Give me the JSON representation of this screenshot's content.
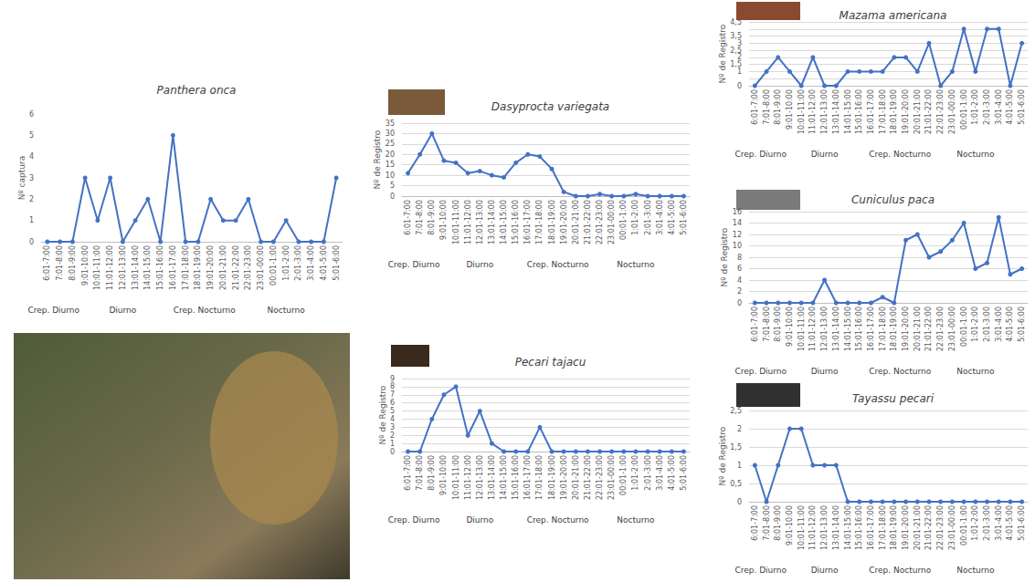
{
  "chart_data": [
    {
      "type": "line",
      "title": "Panthera onca",
      "y_label": "Nº captura",
      "annotations": [
        "Crep. Diurno",
        "Diurno",
        "Crep. Nocturno",
        "Nocturno"
      ],
      "categories": [
        "6:01-7:00",
        "7:01-8:00",
        "8:01-9:00",
        "9:01-10:00",
        "10:01-11:00",
        "11:01-12:00",
        "12:01-13:00",
        "13:01-14:00",
        "14:01-15:00",
        "15:01-16:00",
        "16:01-17:00",
        "17:01-18:00",
        "18:01-19:00",
        "19:01-20:00",
        "20:01-21:00",
        "21:01-22:00",
        "22:01-23:00",
        "23:01-00:00",
        "00:01-1:00",
        "1:01-2:00",
        "2:01-3:00",
        "3:01-4:00",
        "4:01-5:00",
        "5:01-6:00"
      ],
      "values": [
        0,
        0,
        0,
        3,
        1,
        3,
        0,
        1,
        2,
        0,
        5,
        0,
        0,
        2,
        1,
        1,
        2,
        0,
        0,
        1,
        0,
        0,
        0,
        3
      ],
      "color": "#4472c4",
      "marker": "circle",
      "ylim": [
        0,
        6
      ],
      "yticks": [
        0,
        1,
        2,
        3,
        4,
        5,
        6
      ],
      "grid": false
    },
    {
      "type": "line",
      "title": "Dasyprocta variegata",
      "y_label": "Nº de Registro",
      "annotations": [
        "Crep. Diurno",
        "Diurno",
        "Crep. Nocturno",
        "Nocturno"
      ],
      "categories": [
        "6:01-7:00",
        "7:01-8:00",
        "8:01-9:00",
        "9:01-10:00",
        "10:01-11:00",
        "11:01-12:00",
        "12:01-13:00",
        "13:01-14:00",
        "14:01-15:00",
        "15:01-16:00",
        "16:01-17:00",
        "17:01-18:00",
        "18:01-19:00",
        "19:01-20:00",
        "20:01-21:00",
        "21:01-22:00",
        "22:01-23:00",
        "23:01-00:00",
        "00:01-1:00",
        "1:01-2:00",
        "2:01-3:00",
        "3:01-4:00",
        "4:01-5:00",
        "5:01-6:00"
      ],
      "values": [
        11,
        20,
        30,
        17,
        16,
        11,
        12,
        10,
        9,
        16,
        20,
        19,
        13,
        2,
        0,
        0,
        1,
        0,
        0,
        1,
        0,
        0,
        0,
        0
      ],
      "color": "#4472c4",
      "marker": "circle",
      "ylim": [
        0,
        35
      ],
      "yticks": [
        0,
        5,
        10,
        15,
        20,
        25,
        30,
        35
      ],
      "grid": true
    },
    {
      "type": "line",
      "title": "Pecari tajacu",
      "y_label": "Nº de Registro",
      "annotations": [
        "Crep. Diurno",
        "Diurno",
        "Crep. Nocturno",
        "Nocturno"
      ],
      "categories": [
        "6:01-7:00",
        "7:01-8:00",
        "8:01-9:00",
        "9:01-10:00",
        "10:01-11:00",
        "11:01-12:00",
        "12:01-13:00",
        "13:01-14:00",
        "14:01-15:00",
        "15:01-16:00",
        "16:01-17:00",
        "17:01-18:00",
        "18:01-19:00",
        "19:01-20:00",
        "20:01-21:00",
        "21:01-22:00",
        "22:01-23:00",
        "23:01-00:00",
        "00:01-1:00",
        "1:01-2:00",
        "2:01-3:00",
        "3:01-4:00",
        "4:01-5:00",
        "5:01-6:00"
      ],
      "values": [
        0,
        0,
        4,
        7,
        8,
        2,
        5,
        1,
        0,
        0,
        0,
        3,
        0,
        0,
        0,
        0,
        0,
        0,
        0,
        0,
        0,
        0,
        0,
        0
      ],
      "color": "#4472c4",
      "marker": "circle",
      "ylim": [
        0,
        9
      ],
      "yticks": [
        0,
        1,
        2,
        3,
        4,
        5,
        6,
        7,
        8,
        9
      ],
      "grid": true
    },
    {
      "type": "line",
      "title": "Mazama americana",
      "y_label": "Nº de Registro",
      "annotations": [
        "Crep. Diurno",
        "Diurno",
        "Crep. Nocturno",
        "Nocturno"
      ],
      "categories": [
        "6:01-7:00",
        "7:01-8:00",
        "8:01-9:00",
        "9:01-10:00",
        "10:01-11:00",
        "11:01-12:00",
        "12:01-13:00",
        "13:01-14:00",
        "14:01-15:00",
        "15:01-16:00",
        "16:01-17:00",
        "17:01-18:00",
        "18:01-19:00",
        "19:01-20:00",
        "20:01-21:00",
        "21:01-22:00",
        "22:01-23:00",
        "23:01-00:00",
        "00:01-1:00",
        "1:01-2:00",
        "2:01-3:00",
        "3:01-4:00",
        "4:01-5:00",
        "5:01-6:00"
      ],
      "values": [
        0,
        1,
        2,
        1,
        0,
        2,
        0,
        0,
        1,
        1,
        1,
        1,
        2,
        2,
        1,
        3,
        0,
        1,
        4,
        1,
        4,
        4,
        0,
        3
      ],
      "color": "#4472c4",
      "marker": "circle",
      "ylim": [
        0,
        4.5
      ],
      "yticks": [
        0,
        {
          "value": 0.5,
          "label": "0,5"
        },
        1,
        {
          "value": 1.5,
          "label": "1,5"
        },
        2,
        {
          "value": 2.5,
          "label": "2,5"
        },
        3,
        {
          "value": 3.5,
          "label": "3,5"
        },
        4,
        {
          "value": 4.5,
          "label": "4,5"
        }
      ],
      "grid": true
    },
    {
      "type": "line",
      "title": "Cuniculus paca",
      "y_label": "Nº de Registro",
      "annotations": [
        "Crep. Diurno",
        "Diurno",
        "Crep. Nocturno",
        "Nocturno"
      ],
      "categories": [
        "6:01-7:00",
        "7:01-8:00",
        "8:01-9:00",
        "9:01-10:00",
        "10:01-11:00",
        "11:01-12:00",
        "12:01-13:00",
        "13:01-14:00",
        "14:01-15:00",
        "15:01-16:00",
        "16:01-17:00",
        "17:01-18:00",
        "18:01-19:00",
        "19:01-20:00",
        "20:01-21:00",
        "21:01-22:00",
        "22:01-23:00",
        "23:01-00:00",
        "00:01-1:00",
        "1:01-2:00",
        "2:01-3:00",
        "3:01-4:00",
        "4:01-5:00",
        "5:01-6:00"
      ],
      "values": [
        0,
        0,
        0,
        0,
        0,
        0,
        4,
        0,
        0,
        0,
        0,
        1,
        0,
        11,
        12,
        8,
        9,
        11,
        14,
        6,
        7,
        15,
        5,
        6
      ],
      "color": "#4472c4",
      "marker": "circle",
      "ylim": [
        0,
        16
      ],
      "yticks": [
        0,
        2,
        4,
        6,
        8,
        10,
        12,
        14,
        16
      ],
      "grid": true
    },
    {
      "type": "line",
      "title": "Tayassu pecari",
      "y_label": "Nº de Registro",
      "annotations": [
        "Crep. Diurno",
        "Diurno",
        "Crep. Nocturno",
        "Nocturno"
      ],
      "categories": [
        "6:01-7:00",
        "7:01-8:00",
        "8:01-9:00",
        "9:01-10:00",
        "10:01-11:00",
        "11:01-12:00",
        "12:01-13:00",
        "13:01-14:00",
        "14:01-15:00",
        "15:01-16:00",
        "16:01-17:00",
        "17:01-18:00",
        "18:01-19:00",
        "19:01-20:00",
        "20:01-21:00",
        "21:01-22:00",
        "22:01-23:00",
        "23:01-00:00",
        "00:01-1:00",
        "1:01-2:00",
        "2:01-3:00",
        "3:01-4:00",
        "4:01-5:00",
        "5:01-6:00"
      ],
      "values": [
        1,
        0,
        1,
        2,
        2,
        1,
        1,
        1,
        0,
        0,
        0,
        0,
        0,
        0,
        0,
        0,
        0,
        0,
        0,
        0,
        0,
        0,
        0,
        0
      ],
      "color": "#4472c4",
      "marker": "circle",
      "ylim": [
        0,
        2.5
      ],
      "yticks": [
        0,
        {
          "value": 0.5,
          "label": "0,5"
        },
        1,
        {
          "value": 1.5,
          "label": "1,5"
        },
        2,
        {
          "value": 2.5,
          "label": "2,5"
        }
      ],
      "grid": true
    }
  ]
}
